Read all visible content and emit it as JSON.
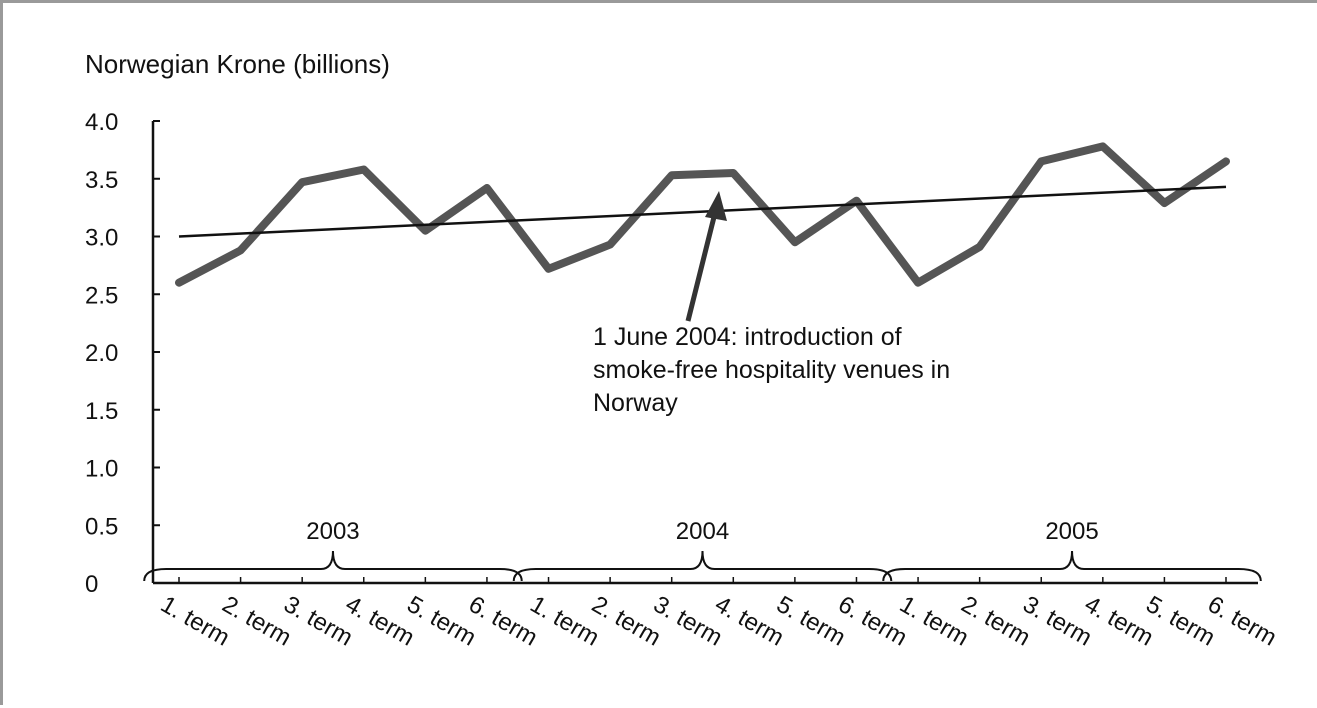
{
  "chart_data": {
    "type": "line",
    "ylabel": "Norwegian Krone (billions)",
    "xlabel": "",
    "ylim": [
      0,
      4.0
    ],
    "y_ticks": [
      "0",
      "0.5",
      "1.0",
      "1.5",
      "2.0",
      "2.5",
      "3.0",
      "3.5",
      "4.0"
    ],
    "y_tick_values": [
      0,
      0.5,
      1.0,
      1.5,
      2.0,
      2.5,
      3.0,
      3.5,
      4.0
    ],
    "grid": false,
    "categories": [
      "1. term",
      "2. term",
      "3. term",
      "4. term",
      "5. term",
      "6. term",
      "1. term",
      "2. term",
      "3. term",
      "4. term",
      "5. term",
      "6. term",
      "1. term",
      "2. term",
      "3. term",
      "4. term",
      "5. term",
      "6. term"
    ],
    "groups": [
      {
        "label": "2003",
        "start": 0,
        "end": 5
      },
      {
        "label": "2004",
        "start": 6,
        "end": 11
      },
      {
        "label": "2005",
        "start": 12,
        "end": 17
      }
    ],
    "series": [
      {
        "values": [
          2.6,
          2.88,
          3.47,
          3.58,
          3.05,
          3.42,
          2.72,
          2.93,
          3.53,
          3.55,
          2.95,
          3.31,
          2.6,
          2.91,
          3.65,
          3.78,
          3.29,
          3.65
        ],
        "color": "#555555"
      }
    ],
    "trendline": {
      "start": 3.0,
      "end": 3.43,
      "color": "#111111"
    },
    "annotation": {
      "lines": [
        "1 June 2004: introduction of",
        "smoke-free hospitality venues in",
        "Norway"
      ],
      "points_to_index": 9
    }
  }
}
